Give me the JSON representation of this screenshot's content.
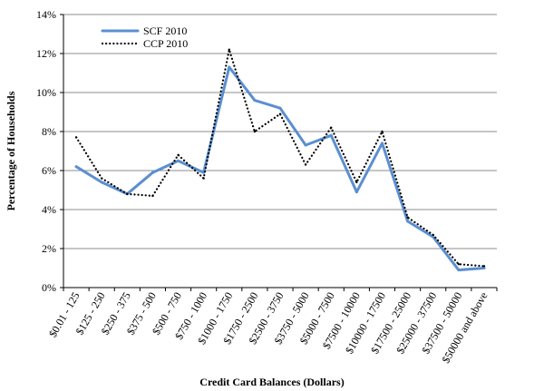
{
  "chart_data": {
    "type": "line",
    "xlabel": "Credit Card Balances (Dollars)",
    "ylabel": "Percentage of Households",
    "ylim": [
      0,
      14
    ],
    "yticks": [
      "0%",
      "2%",
      "4%",
      "6%",
      "8%",
      "10%",
      "12%",
      "14%"
    ],
    "grid": true,
    "legend_position": "top-left",
    "categories": [
      "$0.01 - 125",
      "$125 - 250",
      "$250 - 375",
      "$375 - 500",
      "$500 - 750",
      "$750 - 1000",
      "$1000 - 1750",
      "$1750 - 2500",
      "$2500 - 3750",
      "$3750 - 5000",
      "$5000 - 7500",
      "$7500 - 10000",
      "$10000 - 17500",
      "$17500 - 25000",
      "$25000 - 37500",
      "$37500 - 50000",
      "$50000 and above"
    ],
    "series": [
      {
        "name": "SCF 2010",
        "color": "#5b8fd0",
        "style": "solid",
        "values": [
          6.2,
          5.4,
          4.8,
          5.9,
          6.5,
          5.9,
          11.3,
          9.6,
          9.2,
          7.3,
          7.8,
          4.9,
          7.4,
          3.4,
          2.6,
          0.9,
          1.0
        ]
      },
      {
        "name": "CCP 2010",
        "color": "#000000",
        "style": "dotted",
        "values": [
          7.7,
          5.6,
          4.8,
          4.7,
          6.8,
          5.6,
          12.2,
          8.0,
          8.9,
          6.3,
          8.2,
          5.4,
          8.0,
          3.6,
          2.7,
          1.2,
          1.1
        ]
      }
    ]
  }
}
